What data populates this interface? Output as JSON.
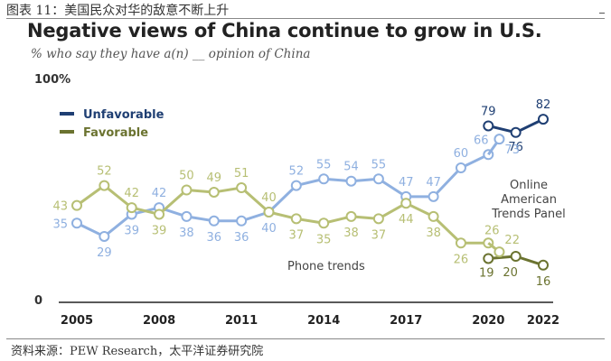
{
  "figure": {
    "caption": "图表 11：美国民众对华的敌意不断上升",
    "source": "资料来源：PEW Research，太平洋证券研究院"
  },
  "chart_data": {
    "type": "line",
    "title": "Negative views of China continue to grow in U.S.",
    "subtitle": "% who say they have a(n) __ opinion of China",
    "ylim": [
      0,
      100
    ],
    "y_ticks": [
      {
        "value": 0,
        "label": "0"
      },
      {
        "value": 100,
        "label": "100%"
      }
    ],
    "xlim": [
      2005,
      2022
    ],
    "x_ticks": [
      2005,
      2008,
      2011,
      2014,
      2017,
      2020,
      2022
    ],
    "grid": false,
    "legend": "top-left",
    "annotations": [
      "Phone trends",
      "Online American Trends Panel"
    ],
    "series": [
      {
        "name": "Unfavorable",
        "mode": "Phone trends",
        "color": "#8fb0e0",
        "x": [
          2005,
          2006,
          2007,
          2008,
          2009,
          2010,
          2011,
          2012,
          2013,
          2014,
          2015,
          2016,
          2017,
          2018,
          2019,
          2020
        ],
        "y": [
          35,
          29,
          39,
          42,
          38,
          36,
          36,
          40,
          52,
          55,
          54,
          55,
          47,
          47,
          60,
          66
        ]
      },
      {
        "name": "Favorable",
        "mode": "Phone trends",
        "color": "#b7bf74",
        "x": [
          2005,
          2006,
          2007,
          2008,
          2009,
          2010,
          2011,
          2012,
          2013,
          2014,
          2015,
          2016,
          2017,
          2018,
          2019,
          2020
        ],
        "y": [
          43,
          52,
          42,
          39,
          50,
          49,
          51,
          40,
          37,
          35,
          38,
          37,
          44,
          38,
          26,
          26
        ]
      },
      {
        "name": "Unfavorable",
        "mode": "Online American Trends Panel",
        "color": "#1f3f73",
        "x": [
          2020,
          2021,
          2022
        ],
        "y": [
          79,
          76,
          82
        ]
      },
      {
        "name": "Favorable",
        "mode": "Online American Trends Panel",
        "color": "#6b7330",
        "x": [
          2020,
          2021,
          2022
        ],
        "y": [
          19,
          20,
          16
        ]
      }
    ],
    "bridges": [
      {
        "series": "Unfavorable",
        "x": [
          2020,
          2020.4
        ],
        "y": [
          66,
          73
        ],
        "label": "73"
      },
      {
        "series": "Favorable",
        "x": [
          2020,
          2020.4
        ],
        "y": [
          26,
          22
        ],
        "label": "22"
      }
    ]
  }
}
